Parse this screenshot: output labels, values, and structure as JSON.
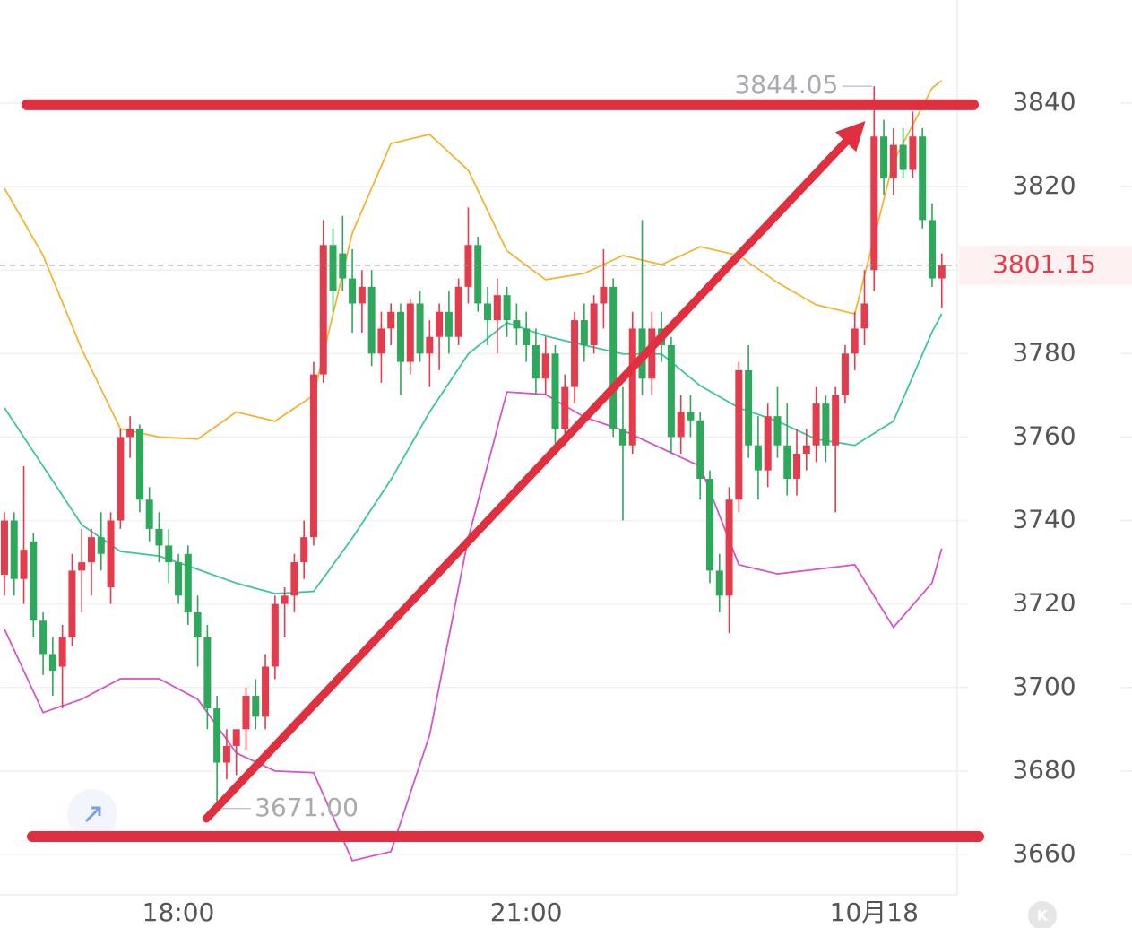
{
  "chart_data": {
    "type": "candlestick",
    "x": [
      0,
      1,
      2,
      3,
      4,
      5,
      6,
      7,
      8,
      9,
      10,
      11,
      12,
      13,
      14,
      15,
      16,
      17,
      18,
      19,
      20,
      21,
      22,
      23,
      24,
      25,
      26,
      27,
      28,
      29,
      30,
      31,
      32,
      33,
      34,
      35,
      36,
      37,
      38,
      39,
      40,
      41,
      42,
      43,
      44,
      45,
      46,
      47,
      48,
      49,
      50,
      51,
      52,
      53,
      54,
      55,
      56,
      57,
      58,
      59,
      60,
      61,
      62,
      63,
      64,
      65,
      66,
      67,
      68,
      69,
      70,
      71,
      72,
      73,
      74,
      75,
      76,
      77,
      78,
      79,
      80,
      81,
      82,
      83,
      84,
      85,
      86,
      87,
      88,
      89,
      90,
      91,
      92,
      93,
      94,
      95,
      96,
      97
    ],
    "open": [
      3727,
      3740,
      3726,
      3735,
      3716,
      3708,
      3705,
      3712,
      3728,
      3730,
      3736,
      3724,
      3740,
      3760,
      3762,
      3745,
      3738,
      3734,
      3730,
      3732,
      3718,
      3712,
      3695,
      3682,
      3686,
      3690,
      3698,
      3693,
      3705,
      3720,
      3722,
      3730,
      3736,
      3775,
      3806,
      3804,
      3798,
      3792,
      3796,
      3780,
      3786,
      3790,
      3778,
      3792,
      3780,
      3784,
      3790,
      3784,
      3796,
      3806,
      3792,
      3788,
      3794,
      3788,
      3786,
      3782,
      3774,
      3780,
      3762,
      3772,
      3788,
      3782,
      3792,
      3796,
      3762,
      3758,
      3786,
      3774,
      3786,
      3782,
      3760,
      3766,
      3764,
      3750,
      3728,
      3722,
      3745,
      3776,
      3758,
      3752,
      3765,
      3758,
      3750,
      3756,
      3758,
      3768,
      3758,
      3770,
      3780,
      3786,
      3800,
      3832,
      3822,
      3830,
      3824,
      3832,
      3812,
      3798
    ],
    "high": [
      3742,
      3742,
      3753,
      3737,
      3718,
      3712,
      3715,
      3732,
      3738,
      3738,
      3742,
      3742,
      3762,
      3765,
      3763,
      3748,
      3742,
      3738,
      3732,
      3734,
      3722,
      3715,
      3698,
      3690,
      3690,
      3700,
      3702,
      3708,
      3722,
      3724,
      3732,
      3740,
      3778,
      3812,
      3810,
      3813,
      3805,
      3800,
      3800,
      3790,
      3792,
      3792,
      3793,
      3795,
      3788,
      3792,
      3795,
      3798,
      3815,
      3808,
      3796,
      3798,
      3796,
      3792,
      3790,
      3786,
      3784,
      3782,
      3775,
      3790,
      3792,
      3794,
      3805,
      3798,
      3772,
      3790,
      3812,
      3790,
      3790,
      3784,
      3770,
      3770,
      3766,
      3752,
      3732,
      3748,
      3778,
      3782,
      3765,
      3768,
      3772,
      3768,
      3762,
      3762,
      3772,
      3770,
      3772,
      3782,
      3790,
      3800,
      3844.05,
      3836,
      3834,
      3834,
      3838,
      3834,
      3816,
      3804
    ],
    "low": [
      3722,
      3722,
      3720,
      3712,
      3703,
      3698,
      3695,
      3710,
      3718,
      3722,
      3728,
      3720,
      3738,
      3755,
      3742,
      3735,
      3730,
      3725,
      3720,
      3715,
      3705,
      3690,
      3671,
      3678,
      3679,
      3685,
      3690,
      3690,
      3702,
      3712,
      3718,
      3726,
      3734,
      3773,
      3790,
      3795,
      3785,
      3785,
      3777,
      3773,
      3782,
      3770,
      3775,
      3778,
      3772,
      3776,
      3780,
      3782,
      3792,
      3790,
      3782,
      3780,
      3784,
      3782,
      3778,
      3770,
      3770,
      3758,
      3758,
      3768,
      3778,
      3780,
      3786,
      3760,
      3740,
      3756,
      3770,
      3770,
      3778,
      3756,
      3756,
      3760,
      3745,
      3725,
      3718,
      3713,
      3742,
      3755,
      3745,
      3748,
      3755,
      3746,
      3746,
      3752,
      3754,
      3754,
      3742,
      3768,
      3776,
      3782,
      3795,
      3818,
      3818,
      3822,
      3822,
      3810,
      3796,
      3791
    ],
    "close": [
      3740,
      3726,
      3733,
      3716,
      3708,
      3704,
      3712,
      3728,
      3730,
      3736,
      3732,
      3740,
      3760,
      3762,
      3745,
      3738,
      3734,
      3730,
      3722,
      3718,
      3712,
      3695,
      3682,
      3686,
      3690,
      3698,
      3693,
      3705,
      3720,
      3722,
      3730,
      3736,
      3775,
      3806,
      3795,
      3798,
      3792,
      3796,
      3780,
      3786,
      3790,
      3778,
      3792,
      3780,
      3784,
      3790,
      3784,
      3796,
      3806,
      3792,
      3788,
      3794,
      3788,
      3786,
      3782,
      3774,
      3780,
      3762,
      3772,
      3788,
      3782,
      3792,
      3796,
      3762,
      3758,
      3786,
      3774,
      3786,
      3782,
      3760,
      3766,
      3764,
      3750,
      3728,
      3722,
      3745,
      3776,
      3758,
      3752,
      3765,
      3758,
      3750,
      3756,
      3758,
      3768,
      3758,
      3770,
      3780,
      3786,
      3792,
      3832,
      3822,
      3830,
      3824,
      3832,
      3812,
      3798,
      3801.15
    ],
    "up_color": "#e23c4d",
    "down_color": "#2ea85a",
    "bands_x": [
      0,
      4,
      8,
      12,
      16,
      20,
      24,
      28,
      32,
      36,
      40,
      44,
      48,
      52,
      56,
      60,
      64,
      68,
      72,
      76,
      80,
      84,
      88,
      92,
      96,
      97
    ],
    "bands": [
      {
        "color": "#f2b533",
        "values": [
          3819.6,
          3803.5,
          3781,
          3762,
          3760,
          3759.5,
          3766,
          3763.8,
          3770,
          3808.9,
          3830.3,
          3832.5,
          3823.9,
          3804.6,
          3797.7,
          3799.2,
          3803.5,
          3801.3,
          3805.6,
          3803.5,
          3797,
          3791.7,
          3789.5,
          3826,
          3843.6,
          3845.4
        ]
      },
      {
        "color": "#3cc4a2",
        "values": [
          3767,
          3753,
          3739,
          3732.6,
          3731.5,
          3728.3,
          3725,
          3722.5,
          3723,
          3735.8,
          3749.8,
          3766,
          3779.9,
          3787.4,
          3784.2,
          3782,
          3779.9,
          3779.9,
          3772.3,
          3767,
          3763.8,
          3759.5,
          3758,
          3763.8,
          3785.2,
          3789.5
        ]
      },
      {
        "color": "#d455c6",
        "values": [
          3714,
          3694,
          3697.2,
          3702.1,
          3702.1,
          3697.2,
          3684.3,
          3680,
          3679.6,
          3658.5,
          3660.7,
          3688.6,
          3735.8,
          3770.8,
          3770.2,
          3764.8,
          3761.6,
          3757.3,
          3753,
          3729.4,
          3727.2,
          3728.3,
          3729.4,
          3714.4,
          3725.1,
          3733.3
        ]
      }
    ],
    "xlim": [
      -0.46,
      98.6
    ],
    "xticks": [
      {
        "value": 18,
        "label": "18:00"
      },
      {
        "value": 54,
        "label": "21:00"
      },
      {
        "value": 90,
        "label": "10月18"
      }
    ],
    "ylim": [
      3649.9,
      3864.7
    ],
    "yticks": [
      3660,
      3680,
      3700,
      3720,
      3740,
      3760,
      3780,
      3800,
      3820,
      3840
    ],
    "grid": true,
    "last_price": 3801.15,
    "high_label": 3844.05,
    "high_x": 90,
    "low_label": {
      "value": 3671,
      "label": "3671.00"
    },
    "low_x": 22,
    "levels": [
      3839.6,
      3664.3
    ],
    "arrow": {
      "x": [
        20.9,
        89.1
      ],
      "y": [
        3668.6,
        3835.7
      ]
    },
    "annotation_color": "#e0303f"
  }
}
